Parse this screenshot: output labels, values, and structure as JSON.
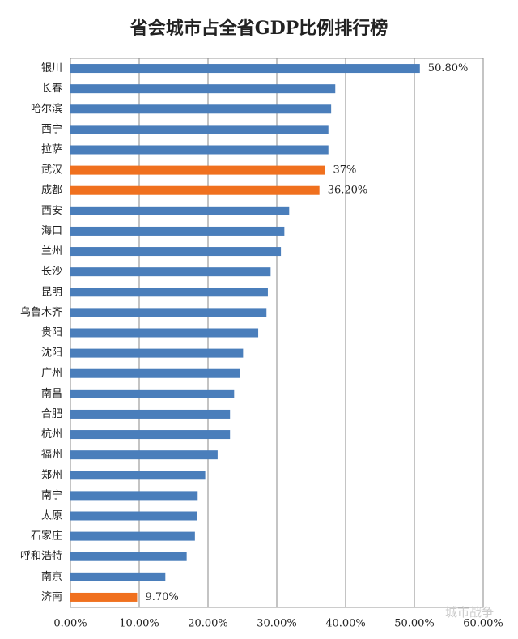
{
  "chart_data": {
    "type": "barh",
    "title": "省会城市占全省GDP比例排行榜",
    "categories": [
      "银川",
      "长春",
      "哈尔滨",
      "西宁",
      "拉萨",
      "武汉",
      "成都",
      "西安",
      "海口",
      "兰州",
      "长沙",
      "昆明",
      "乌鲁木齐",
      "贵阳",
      "沈阳",
      "广州",
      "南昌",
      "合肥",
      "杭州",
      "福州",
      "郑州",
      "南宁",
      "太原",
      "石家庄",
      "呼和浩特",
      "南京",
      "济南"
    ],
    "values": [
      50.8,
      38.5,
      37.9,
      37.5,
      37.5,
      37,
      36.2,
      31.8,
      31.1,
      30.6,
      29.1,
      28.7,
      28.5,
      27.3,
      25.1,
      24.6,
      23.8,
      23.2,
      23.2,
      21.4,
      19.6,
      18.5,
      18.4,
      18.1,
      16.9,
      13.8,
      9.7
    ],
    "value_labels": [
      "50.80%",
      null,
      null,
      null,
      null,
      "37%",
      "36.20%",
      null,
      null,
      null,
      null,
      null,
      null,
      null,
      null,
      null,
      null,
      null,
      null,
      null,
      null,
      null,
      null,
      null,
      null,
      null,
      "9.70%"
    ],
    "colors": [
      "#4a7ebb",
      "#4a7ebb",
      "#4a7ebb",
      "#4a7ebb",
      "#4a7ebb",
      "#f0701e",
      "#f0701e",
      "#4a7ebb",
      "#4a7ebb",
      "#4a7ebb",
      "#4a7ebb",
      "#4a7ebb",
      "#4a7ebb",
      "#4a7ebb",
      "#4a7ebb",
      "#4a7ebb",
      "#4a7ebb",
      "#4a7ebb",
      "#4a7ebb",
      "#4a7ebb",
      "#4a7ebb",
      "#4a7ebb",
      "#4a7ebb",
      "#4a7ebb",
      "#4a7ebb",
      "#4a7ebb",
      "#f0701e"
    ],
    "xlim": [
      0,
      60
    ],
    "xticks": [
      {
        "value": 0,
        "label": "0.00%"
      },
      {
        "value": 10,
        "label": "10.00%"
      },
      {
        "value": 20,
        "label": "20.00%"
      },
      {
        "value": 30,
        "label": "30.00%"
      },
      {
        "value": 40,
        "label": "40.00%"
      },
      {
        "value": 50,
        "label": "50.00%"
      },
      {
        "value": 60,
        "label": "60.00%"
      }
    ],
    "grid": true,
    "watermark": "城市战争"
  }
}
